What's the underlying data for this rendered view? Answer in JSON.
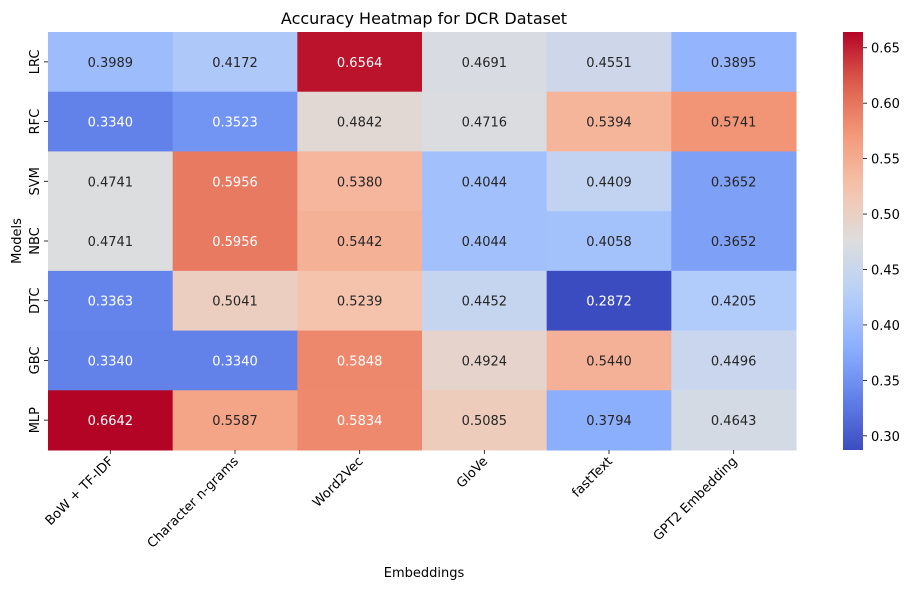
{
  "chart_data": {
    "type": "heatmap",
    "title": "Accuracy Heatmap for DCR Dataset",
    "xlabel": "Embeddings",
    "ylabel": "Models",
    "x_categories": [
      "BoW + TF-IDF",
      "Character n-grams",
      "Word2Vec",
      "GloVe",
      "fastText",
      "GPT2 Embedding"
    ],
    "y_categories": [
      "LRC",
      "RFC",
      "SVM",
      "NBC",
      "DTC",
      "GBC",
      "MLP"
    ],
    "values": [
      [
        0.3989,
        0.4172,
        0.6564,
        0.4691,
        0.4551,
        0.3895
      ],
      [
        0.334,
        0.3523,
        0.4842,
        0.4716,
        0.5394,
        0.5741
      ],
      [
        0.4741,
        0.5956,
        0.538,
        0.4044,
        0.4409,
        0.3652
      ],
      [
        0.4741,
        0.5956,
        0.5442,
        0.4044,
        0.4058,
        0.3652
      ],
      [
        0.3363,
        0.5041,
        0.5239,
        0.4452,
        0.2872,
        0.4205
      ],
      [
        0.334,
        0.334,
        0.5848,
        0.4924,
        0.544,
        0.4496
      ],
      [
        0.6642,
        0.5587,
        0.5834,
        0.5085,
        0.3794,
        0.4643
      ]
    ],
    "value_format_decimals": 4,
    "colormap": "coolwarm",
    "vmin": 0.2872,
    "vmax": 0.6642,
    "colorbar_ticks": [
      0.3,
      0.35,
      0.4,
      0.45,
      0.5,
      0.55,
      0.6,
      0.65
    ],
    "colorbar_tick_labels": [
      "0.30",
      "0.35",
      "0.40",
      "0.45",
      "0.50",
      "0.55",
      "0.60",
      "0.65"
    ]
  },
  "colors": {
    "text_dark": "#262626",
    "text_light": "#ffffff"
  }
}
